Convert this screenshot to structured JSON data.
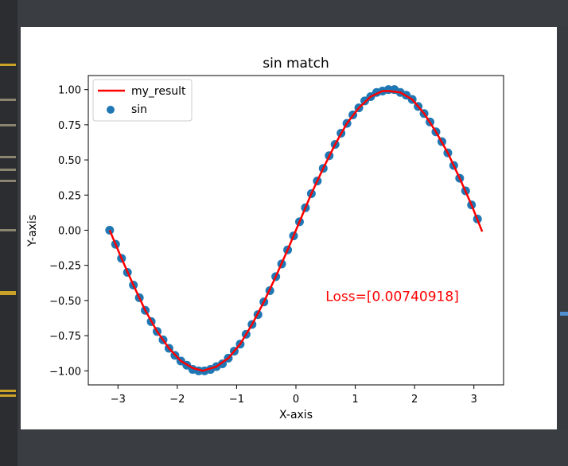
{
  "colors": {
    "background": "#383b3f",
    "figure_background": "#ffffff",
    "scatter": "#1f77b4",
    "line": "#ff0000",
    "annotation": "#ff0000",
    "accent": "#4d8fd1"
  },
  "chart_data": {
    "type": "scatter",
    "title": "sin match",
    "xlabel": "X-axis",
    "ylabel": "Y-axis",
    "xlim": [
      -3.5,
      3.5
    ],
    "ylim": [
      -1.1,
      1.1
    ],
    "x_ticks": [
      -3,
      -2,
      -1,
      0,
      1,
      2,
      3
    ],
    "x_tick_labels": [
      "−3",
      "−2",
      "−1",
      "0",
      "1",
      "2",
      "3"
    ],
    "y_ticks": [
      1.0,
      0.75,
      0.5,
      0.25,
      0.0,
      -0.25,
      -0.5,
      -0.75,
      -1.0
    ],
    "y_tick_labels": [
      "1.00",
      "0.75",
      "0.50",
      "0.25",
      "0.00",
      "−0.25",
      "−0.50",
      "−0.75",
      "−1.00"
    ],
    "grid": false,
    "legend": {
      "position": "upper-left",
      "entries": [
        "my_result",
        "sin"
      ]
    },
    "series": [
      {
        "name": "sin",
        "kind": "scatter",
        "color": "#1f77b4",
        "x": [
          -3.14,
          -3.04,
          -2.94,
          -2.84,
          -2.74,
          -2.64,
          -2.54,
          -2.44,
          -2.34,
          -2.24,
          -2.14,
          -2.04,
          -1.94,
          -1.84,
          -1.74,
          -1.64,
          -1.54,
          -1.44,
          -1.34,
          -1.24,
          -1.14,
          -1.04,
          -0.94,
          -0.84,
          -0.74,
          -0.64,
          -0.54,
          -0.44,
          -0.34,
          -0.24,
          -0.14,
          -0.04,
          0.06,
          0.16,
          0.26,
          0.36,
          0.46,
          0.56,
          0.66,
          0.76,
          0.86,
          0.96,
          1.06,
          1.16,
          1.26,
          1.36,
          1.46,
          1.56,
          1.66,
          1.76,
          1.86,
          1.96,
          2.06,
          2.16,
          2.26,
          2.36,
          2.46,
          2.56,
          2.66,
          2.76,
          2.86,
          2.96,
          3.06
        ],
        "y": [
          0.0,
          -0.1,
          -0.2,
          -0.3,
          -0.39,
          -0.48,
          -0.57,
          -0.65,
          -0.72,
          -0.78,
          -0.84,
          -0.89,
          -0.93,
          -0.96,
          -0.99,
          -1.0,
          -1.0,
          -0.99,
          -0.97,
          -0.95,
          -0.91,
          -0.86,
          -0.81,
          -0.74,
          -0.67,
          -0.6,
          -0.51,
          -0.43,
          -0.33,
          -0.24,
          -0.14,
          -0.04,
          0.06,
          0.16,
          0.26,
          0.35,
          0.44,
          0.53,
          0.61,
          0.69,
          0.76,
          0.82,
          0.87,
          0.92,
          0.95,
          0.98,
          0.99,
          1.0,
          1.0,
          0.98,
          0.96,
          0.93,
          0.88,
          0.83,
          0.77,
          0.7,
          0.63,
          0.55,
          0.46,
          0.37,
          0.28,
          0.18,
          0.08
        ]
      },
      {
        "name": "my_result",
        "kind": "line",
        "color": "#ff0000",
        "x": [
          -3.14,
          -2.94,
          -2.74,
          -2.54,
          -2.34,
          -2.14,
          -1.94,
          -1.74,
          -1.57,
          -1.34,
          -1.14,
          -0.94,
          -0.74,
          -0.54,
          -0.34,
          -0.14,
          0.06,
          0.26,
          0.46,
          0.66,
          0.86,
          1.06,
          1.26,
          1.46,
          1.57,
          1.76,
          1.96,
          2.16,
          2.36,
          2.56,
          2.76,
          2.96,
          3.14
        ],
        "y": [
          0.0,
          -0.2,
          -0.39,
          -0.57,
          -0.72,
          -0.84,
          -0.93,
          -0.98,
          -1.0,
          -0.97,
          -0.91,
          -0.81,
          -0.67,
          -0.51,
          -0.33,
          -0.14,
          0.06,
          0.26,
          0.44,
          0.61,
          0.76,
          0.87,
          0.95,
          0.99,
          0.99,
          0.98,
          0.93,
          0.83,
          0.7,
          0.55,
          0.37,
          0.18,
          -0.01
        ]
      }
    ],
    "annotations": [
      {
        "text": "Loss=[0.00740918]",
        "x": 0.5,
        "y": -0.47,
        "color": "#ff0000"
      }
    ]
  }
}
